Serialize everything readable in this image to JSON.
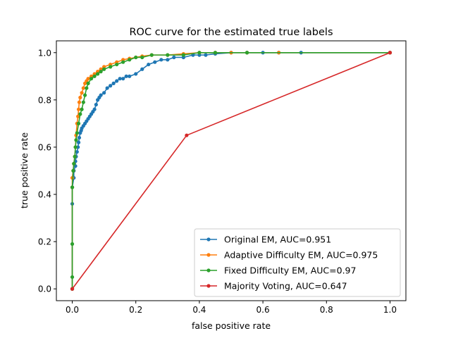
{
  "chart_data": {
    "type": "line",
    "title": "ROC curve for the estimated true labels",
    "xlabel": "false positive rate",
    "ylabel": "true positive rate",
    "xlim": [
      -0.05,
      1.05
    ],
    "ylim": [
      -0.05,
      1.05
    ],
    "xticks": [
      "0.0",
      "0.2",
      "0.4",
      "0.6",
      "0.8",
      "1.0"
    ],
    "yticks": [
      "0.0",
      "0.2",
      "0.4",
      "0.6",
      "0.8",
      "1.0"
    ],
    "grid": false,
    "legend_position": "lower-right",
    "series": [
      {
        "name": "Original EM, AUC=0.951",
        "color": "#1f77b4",
        "x": [
          0.0,
          0.0,
          0.0,
          0.005,
          0.005,
          0.01,
          0.01,
          0.012,
          0.015,
          0.018,
          0.02,
          0.022,
          0.025,
          0.028,
          0.03,
          0.035,
          0.04,
          0.045,
          0.05,
          0.055,
          0.06,
          0.065,
          0.07,
          0.075,
          0.08,
          0.085,
          0.09,
          0.1,
          0.11,
          0.12,
          0.13,
          0.14,
          0.15,
          0.16,
          0.17,
          0.18,
          0.2,
          0.22,
          0.24,
          0.26,
          0.28,
          0.3,
          0.32,
          0.35,
          0.38,
          0.4,
          0.42,
          0.45,
          0.5,
          0.55,
          0.6,
          0.65,
          0.72,
          1.0
        ],
        "y": [
          0.0,
          0.36,
          0.43,
          0.47,
          0.5,
          0.52,
          0.54,
          0.56,
          0.58,
          0.6,
          0.62,
          0.64,
          0.66,
          0.67,
          0.68,
          0.69,
          0.7,
          0.71,
          0.72,
          0.73,
          0.74,
          0.75,
          0.76,
          0.78,
          0.8,
          0.81,
          0.82,
          0.83,
          0.85,
          0.86,
          0.87,
          0.88,
          0.89,
          0.89,
          0.9,
          0.9,
          0.91,
          0.93,
          0.95,
          0.96,
          0.97,
          0.97,
          0.98,
          0.98,
          0.99,
          0.99,
          0.99,
          0.995,
          1.0,
          1.0,
          1.0,
          1.0,
          1.0,
          1.0
        ]
      },
      {
        "name": "Adaptive Difficulty EM, AUC=0.975",
        "color": "#ff7f0e",
        "x": [
          0.0,
          0.0,
          0.0,
          0.003,
          0.005,
          0.008,
          0.01,
          0.012,
          0.015,
          0.018,
          0.02,
          0.022,
          0.025,
          0.03,
          0.035,
          0.04,
          0.045,
          0.05,
          0.06,
          0.07,
          0.08,
          0.09,
          0.1,
          0.12,
          0.14,
          0.16,
          0.18,
          0.2,
          0.22,
          0.25,
          0.3,
          0.35,
          0.4,
          0.45,
          0.5,
          0.55,
          0.65,
          1.0
        ],
        "y": [
          0.0,
          0.43,
          0.47,
          0.5,
          0.53,
          0.56,
          0.6,
          0.65,
          0.7,
          0.73,
          0.76,
          0.79,
          0.81,
          0.83,
          0.85,
          0.87,
          0.88,
          0.89,
          0.9,
          0.91,
          0.92,
          0.93,
          0.94,
          0.95,
          0.96,
          0.97,
          0.975,
          0.98,
          0.985,
          0.99,
          0.99,
          0.995,
          1.0,
          1.0,
          1.0,
          1.0,
          1.0,
          1.0
        ]
      },
      {
        "name": "Fixed Difficulty EM, AUC=0.97",
        "color": "#2ca02c",
        "x": [
          0.0,
          0.0,
          0.0,
          0.0,
          0.003,
          0.005,
          0.008,
          0.01,
          0.012,
          0.015,
          0.02,
          0.025,
          0.03,
          0.035,
          0.04,
          0.045,
          0.05,
          0.06,
          0.07,
          0.08,
          0.09,
          0.1,
          0.12,
          0.14,
          0.16,
          0.18,
          0.2,
          0.22,
          0.25,
          0.3,
          0.35,
          0.4,
          0.45,
          0.55,
          1.0
        ],
        "y": [
          0.0,
          0.05,
          0.19,
          0.43,
          0.5,
          0.53,
          0.56,
          0.6,
          0.63,
          0.66,
          0.7,
          0.74,
          0.76,
          0.79,
          0.82,
          0.85,
          0.87,
          0.89,
          0.9,
          0.91,
          0.92,
          0.93,
          0.94,
          0.95,
          0.96,
          0.97,
          0.98,
          0.98,
          0.99,
          0.99,
          0.99,
          1.0,
          1.0,
          1.0,
          1.0
        ]
      },
      {
        "name": "Majority Voting, AUC=0.647",
        "color": "#d62728",
        "x": [
          0.0,
          0.36,
          1.0
        ],
        "y": [
          0.0,
          0.65,
          1.0
        ]
      }
    ]
  }
}
